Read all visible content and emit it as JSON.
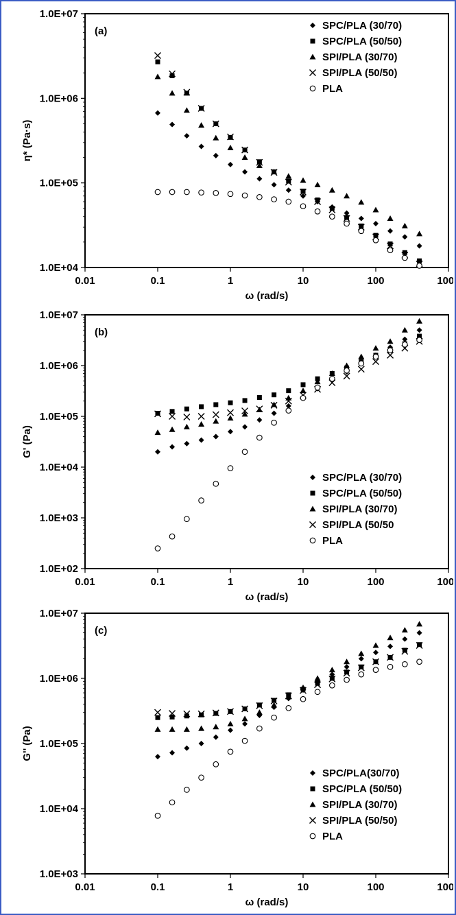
{
  "chart_data": [
    {
      "type": "scatter",
      "panel_label": "(a)",
      "xlabel": "ω (rad/s)",
      "ylabel": "η* (Pa·s)",
      "x_scale": "log",
      "y_scale": "log",
      "xlim": [
        0.01,
        1000
      ],
      "ylim": [
        10000,
        10000000
      ],
      "x_ticks": [
        0.01,
        0.1,
        1,
        10,
        100,
        1000
      ],
      "x_tick_labels": [
        "0.01",
        "0.1",
        "1",
        "10",
        "100",
        "1000"
      ],
      "y_ticks": [
        10000,
        100000,
        1000000,
        10000000
      ],
      "y_tick_labels": [
        "1.0E+04",
        "1.0E+05",
        "1.0E+06",
        "1.0E+07"
      ],
      "legend_position": "top-right",
      "grid": false,
      "x": [
        0.1,
        0.158,
        0.251,
        0.398,
        0.631,
        1,
        1.58,
        2.51,
        3.98,
        6.31,
        10,
        15.8,
        25.1,
        39.8,
        63.1,
        100,
        158,
        251,
        398
      ],
      "series": [
        {
          "name": "SPC/PLA (30/70)",
          "marker": "diamond",
          "values": [
            670000,
            490000,
            360000,
            270000,
            210000,
            165000,
            135000,
            112000,
            95000,
            82000,
            70000,
            60000,
            52000,
            44000,
            38000,
            33000,
            27000,
            23000,
            18000
          ]
        },
        {
          "name": "SPC/PLA (50/50)",
          "marker": "square",
          "values": [
            2700000,
            1850000,
            1150000,
            760000,
            500000,
            345000,
            245000,
            178000,
            135000,
            105000,
            80000,
            63000,
            50000,
            39000,
            31000,
            24000,
            19000,
            15000,
            12000
          ]
        },
        {
          "name": "SPI/PLA (30/70)",
          "marker": "triangle",
          "values": [
            1800000,
            1150000,
            720000,
            480000,
            340000,
            260000,
            200000,
            160000,
            135000,
            120000,
            107000,
            95000,
            82000,
            70000,
            59000,
            48000,
            38000,
            31000,
            25000
          ]
        },
        {
          "name": "SPI/PLA (50/50)",
          "marker": "cross",
          "values": [
            3200000,
            1950000,
            1180000,
            760000,
            500000,
            350000,
            245000,
            175000,
            133000,
            102000,
            78000,
            60000,
            48000,
            38000,
            30000,
            23000,
            18000,
            14000,
            11000
          ]
        },
        {
          "name": "PLA",
          "marker": "circle",
          "values": [
            78000,
            78000,
            78000,
            77000,
            76000,
            74000,
            71000,
            68000,
            64000,
            60000,
            53000,
            46000,
            40000,
            33000,
            27000,
            21000,
            16000,
            13000,
            10500
          ]
        }
      ]
    },
    {
      "type": "scatter",
      "panel_label": "(b)",
      "xlabel": "ω (rad/s)",
      "ylabel": "G' (Pa)",
      "x_scale": "log",
      "y_scale": "log",
      "xlim": [
        0.01,
        1000
      ],
      "ylim": [
        100,
        10000000
      ],
      "x_ticks": [
        0.01,
        0.1,
        1,
        10,
        100,
        1000
      ],
      "x_tick_labels": [
        "0.01",
        "0.1",
        "1",
        "10",
        "100",
        "1000"
      ],
      "y_ticks": [
        100,
        1000,
        10000,
        100000,
        1000000,
        10000000
      ],
      "y_tick_labels": [
        "1.0E+02",
        "1.0E+03",
        "1.0E+04",
        "1.0E+05",
        "1.0E+06",
        "1.0E+07"
      ],
      "legend_position": "bottom-right",
      "grid": false,
      "x": [
        0.1,
        0.158,
        0.251,
        0.398,
        0.631,
        1,
        1.58,
        2.51,
        3.98,
        6.31,
        10,
        15.8,
        25.1,
        39.8,
        63.1,
        100,
        158,
        251,
        398
      ],
      "series": [
        {
          "name": "SPC/PLA (30/70)",
          "marker": "diamond",
          "values": [
            20000,
            25000,
            29000,
            34000,
            40000,
            50000,
            62000,
            85000,
            115000,
            160000,
            230000,
            350000,
            520000,
            750000,
            1100000,
            1600000,
            2300000,
            3300000,
            5000000
          ]
        },
        {
          "name": "SPC/PLA (50/50)",
          "marker": "square",
          "values": [
            115000,
            125000,
            140000,
            155000,
            170000,
            185000,
            205000,
            235000,
            265000,
            320000,
            420000,
            550000,
            700000,
            900000,
            1200000,
            1600000,
            2000000,
            2700000,
            3800000
          ]
        },
        {
          "name": "SPI/PLA (30/70)",
          "marker": "triangle",
          "values": [
            48000,
            55000,
            62000,
            70000,
            80000,
            92000,
            110000,
            135000,
            170000,
            230000,
            320000,
            480000,
            700000,
            1000000,
            1500000,
            2200000,
            3000000,
            5000000,
            7500000
          ]
        },
        {
          "name": "SPI/PLA (50/50",
          "marker": "cross",
          "values": [
            112000,
            100000,
            97000,
            100000,
            108000,
            118000,
            128000,
            140000,
            165000,
            200000,
            260000,
            340000,
            460000,
            620000,
            850000,
            1200000,
            1600000,
            2200000,
            3000000
          ]
        },
        {
          "name": "PLA",
          "marker": "circle",
          "values": [
            250,
            430,
            950,
            2200,
            4700,
            9500,
            20000,
            38000,
            75000,
            130000,
            230000,
            370000,
            550000,
            800000,
            1100000,
            1500000,
            2000000,
            2600000,
            3200000
          ]
        }
      ]
    },
    {
      "type": "scatter",
      "panel_label": "(c)",
      "xlabel": "ω (rad/s)",
      "ylabel": "G'' (Pa)",
      "x_scale": "log",
      "y_scale": "log",
      "xlim": [
        0.01,
        1000
      ],
      "ylim": [
        1000,
        10000000
      ],
      "x_ticks": [
        0.01,
        0.1,
        1,
        10,
        100,
        1000
      ],
      "x_tick_labels": [
        "0.01",
        "0.1",
        "1",
        "10",
        "100",
        "1000"
      ],
      "y_ticks": [
        1000,
        10000,
        100000,
        1000000,
        10000000
      ],
      "y_tick_labels": [
        "1.0E+03",
        "1.0E+04",
        "1.0E+05",
        "1.0E+06",
        "1.0E+07"
      ],
      "legend_position": "bottom-right",
      "grid": false,
      "x": [
        0.1,
        0.158,
        0.251,
        0.398,
        0.631,
        1,
        1.58,
        2.51,
        3.98,
        6.31,
        10,
        15.8,
        25.1,
        39.8,
        63.1,
        100,
        158,
        251,
        398
      ],
      "series": [
        {
          "name": "SPC/PLA(30/70)",
          "marker": "diamond",
          "values": [
            63000,
            72000,
            85000,
            100000,
            125000,
            160000,
            200000,
            270000,
            360000,
            490000,
            660000,
            900000,
            1150000,
            1500000,
            2000000,
            2500000,
            3100000,
            4000000,
            5000000
          ]
        },
        {
          "name": "SPC/PLA (50/50)",
          "marker": "square",
          "values": [
            250000,
            255000,
            265000,
            275000,
            290000,
            310000,
            340000,
            390000,
            460000,
            560000,
            680000,
            840000,
            1000000,
            1250000,
            1500000,
            1800000,
            2100000,
            2700000,
            3300000
          ]
        },
        {
          "name": "SPI/PLA (30/70)",
          "marker": "triangle",
          "values": [
            165000,
            165000,
            165000,
            170000,
            180000,
            200000,
            240000,
            300000,
            390000,
            520000,
            720000,
            1000000,
            1350000,
            1800000,
            2400000,
            3200000,
            4200000,
            5500000,
            6800000
          ]
        },
        {
          "name": "SPI/PLA (50/50)",
          "marker": "cross",
          "values": [
            300000,
            290000,
            285000,
            285000,
            295000,
            310000,
            340000,
            380000,
            450000,
            540000,
            650000,
            800000,
            980000,
            1200000,
            1450000,
            1800000,
            2100000,
            2600000,
            3200000
          ]
        },
        {
          "name": "PLA",
          "marker": "circle",
          "values": [
            7800,
            12500,
            19500,
            30000,
            48000,
            75000,
            110000,
            170000,
            250000,
            350000,
            480000,
            620000,
            780000,
            950000,
            1150000,
            1350000,
            1500000,
            1650000,
            1800000
          ]
        }
      ]
    }
  ]
}
